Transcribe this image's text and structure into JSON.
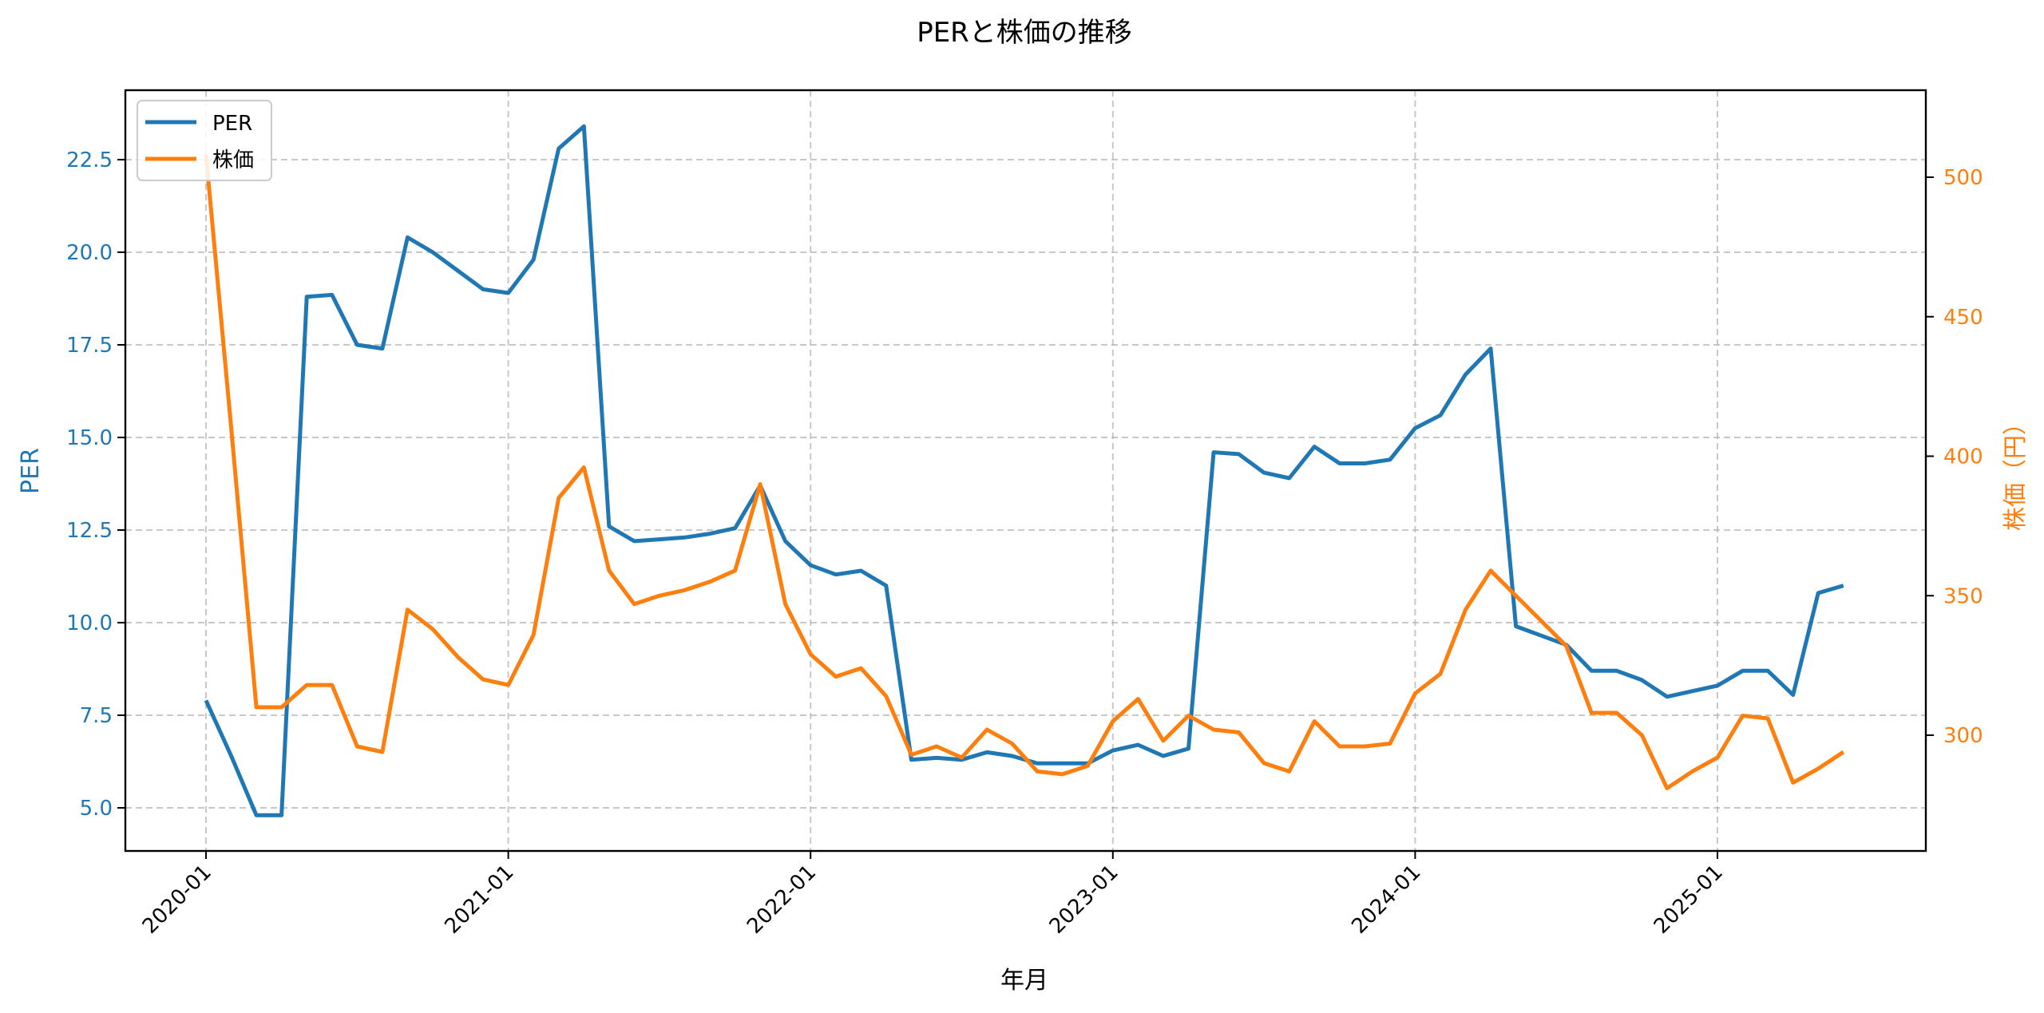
{
  "chart_data": {
    "type": "line",
    "title": "PERと株価の推移",
    "xlabel": "年月",
    "ylabel_left": "PER",
    "ylabel_right": "株価（円）",
    "x_tick_labels": [
      "2020-01",
      "2021-01",
      "2022-01",
      "2023-01",
      "2024-01",
      "2025-01"
    ],
    "y_left_ticks": [
      "5.0",
      "7.5",
      "10.0",
      "12.5",
      "15.0",
      "17.5",
      "20.0",
      "22.5"
    ],
    "y_right_ticks": [
      "300",
      "350",
      "400",
      "450",
      "500"
    ],
    "ylim_left": [
      3.9,
      24.4
    ],
    "ylim_right": [
      260,
      530
    ],
    "grid": true,
    "legend_position": "upper left",
    "colors": {
      "PER": "#1f77b4",
      "株価": "#ff7f0e"
    },
    "x": [
      "2020-01",
      "2020-02",
      "2020-03",
      "2020-04",
      "2020-05",
      "2020-06",
      "2020-07",
      "2020-08",
      "2020-09",
      "2020-10",
      "2020-11",
      "2020-12",
      "2021-01",
      "2021-02",
      "2021-03",
      "2021-04",
      "2021-05",
      "2021-06",
      "2021-07",
      "2021-08",
      "2021-09",
      "2021-10",
      "2021-11",
      "2021-12",
      "2022-01",
      "2022-02",
      "2022-03",
      "2022-04",
      "2022-05",
      "2022-06",
      "2022-07",
      "2022-08",
      "2022-09",
      "2022-10",
      "2022-11",
      "2022-12",
      "2023-01",
      "2023-02",
      "2023-03",
      "2023-04",
      "2023-05",
      "2023-06",
      "2023-07",
      "2023-08",
      "2023-09",
      "2023-10",
      "2023-11",
      "2023-12",
      "2024-01",
      "2024-02",
      "2024-03",
      "2024-04",
      "2024-05",
      "2024-06",
      "2024-07",
      "2024-08",
      "2024-09",
      "2024-10",
      "2024-11",
      "2024-12",
      "2025-01",
      "2025-02",
      "2025-03",
      "2025-04",
      "2025-05",
      "2025-06"
    ],
    "series": [
      {
        "name": "PER",
        "axis": "left",
        "values": [
          7.9,
          6.4,
          4.8,
          4.8,
          18.8,
          18.85,
          17.5,
          17.4,
          20.4,
          20.0,
          19.5,
          19.0,
          18.9,
          19.8,
          22.8,
          23.4,
          12.6,
          12.2,
          12.25,
          12.3,
          12.4,
          12.55,
          13.7,
          12.2,
          11.55,
          11.3,
          11.4,
          11.0,
          6.3,
          6.35,
          6.3,
          6.5,
          6.4,
          6.2,
          6.2,
          6.2,
          6.55,
          6.7,
          6.4,
          6.6,
          14.6,
          14.55,
          14.05,
          13.9,
          14.75,
          14.3,
          14.3,
          14.4,
          15.25,
          15.6,
          16.7,
          17.4,
          9.9,
          9.65,
          9.4,
          8.7,
          8.7,
          8.45,
          8.0,
          8.15,
          8.3,
          8.7,
          8.7,
          8.05,
          10.8,
          11.0
        ]
      },
      {
        "name": "株価",
        "axis": "right",
        "values": [
          508,
          410,
          310,
          310,
          318,
          318,
          296,
          294,
          345,
          338,
          328,
          320,
          318,
          336,
          385,
          396,
          359,
          347,
          350,
          352,
          355,
          359,
          390,
          347,
          329,
          321,
          324,
          314,
          293,
          296,
          292,
          302,
          297,
          287,
          286,
          289,
          305,
          313,
          298,
          307,
          302,
          301,
          290,
          287,
          305,
          296,
          296,
          297,
          315,
          322,
          345,
          359,
          350,
          341,
          332,
          308,
          308,
          300,
          281,
          287,
          292,
          307,
          306,
          283,
          288,
          294
        ]
      }
    ]
  },
  "legend": {
    "items": [
      {
        "label": "PER"
      },
      {
        "label": "株価"
      }
    ]
  }
}
